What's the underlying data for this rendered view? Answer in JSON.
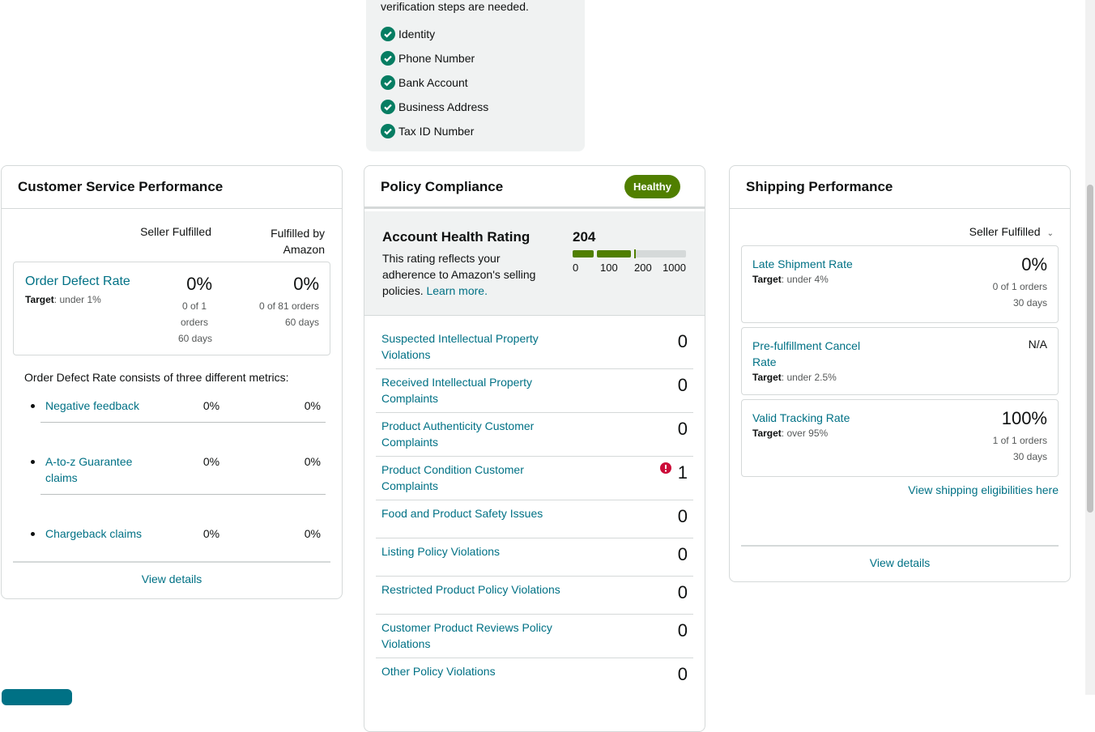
{
  "verification": {
    "note": "verification steps are needed.",
    "steps": [
      "Identity",
      "Phone Number",
      "Bank Account",
      "Business Address",
      "Tax ID Number"
    ]
  },
  "customer_service": {
    "title": "Customer Service Performance",
    "columns": [
      "Seller Fulfilled",
      "Fulfilled by Amazon"
    ],
    "odr": {
      "label": "Order Defect Rate",
      "target_label": "Target",
      "target": ": under 1%",
      "seller": {
        "value": "0%",
        "orders": "0 of 1 orders",
        "period": "60 days"
      },
      "fba": {
        "value": "0%",
        "orders": "0 of 81 orders",
        "period": "60 days"
      }
    },
    "metrics_intro": "Order Defect Rate consists of three different metrics:",
    "metrics": [
      {
        "name": "Negative feedback",
        "seller": "0%",
        "fba": "0%"
      },
      {
        "name": "A-to-z Guarantee claims",
        "seller": "0%",
        "fba": "0%"
      },
      {
        "name": "Chargeback claims",
        "seller": "0%",
        "fba": "0%"
      }
    ],
    "link": "View details"
  },
  "policy": {
    "title": "Policy Compliance",
    "status": "Healthy",
    "ahr": {
      "title": "Account Health Rating",
      "description": "This rating reflects your adherence to Amazon's selling policies.",
      "link": "Learn more.",
      "score": 204,
      "scale": [
        0,
        100,
        200,
        1000
      ]
    },
    "items": [
      {
        "name": "Suspected Intellectual Property Violations",
        "count": 0
      },
      {
        "name": "Received Intellectual Property Complaints",
        "count": 0
      },
      {
        "name": "Product Authenticity Customer Complaints",
        "count": 0
      },
      {
        "name": "Product Condition Customer Complaints",
        "count": 1
      },
      {
        "name": "Food and Product Safety Issues",
        "count": 0
      },
      {
        "name": "Listing Policy Violations",
        "count": 0
      },
      {
        "name": "Restricted Product Policy Violations",
        "count": 0
      },
      {
        "name": "Customer Product Reviews Policy Violations",
        "count": 0
      },
      {
        "name": "Other Policy Violations",
        "count": 0
      }
    ]
  },
  "shipping": {
    "title": "Shipping Performance",
    "filter": "Seller Fulfilled",
    "metrics": [
      {
        "name": "Late Shipment Rate",
        "target_label": "Target",
        "target": ": under 4%",
        "value": "0%",
        "orders": "0 of 1 orders",
        "period": "30 days"
      },
      {
        "name": "Pre-fulfillment Cancel Rate",
        "target_label": "Target",
        "target": ": under 2.5%",
        "value": "N/A"
      },
      {
        "name": "Valid Tracking Rate",
        "target_label": "Target",
        "target": ": over 95%",
        "value": "100%",
        "orders": "1 of 1 orders",
        "period": "30 days"
      }
    ],
    "eligibility_link": "View shipping eligibilities here",
    "link": "View details"
  }
}
